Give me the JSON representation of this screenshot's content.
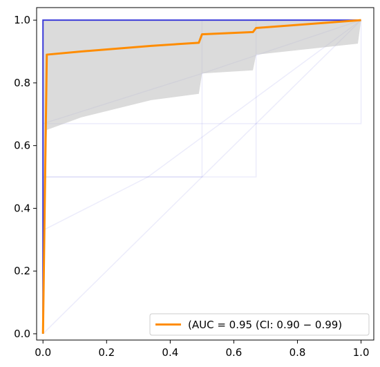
{
  "chart_data": {
    "type": "line",
    "title": "",
    "xlabel": "",
    "ylabel": "",
    "xlim": [
      -0.02,
      1.04
    ],
    "ylim": [
      -0.02,
      1.04
    ],
    "grid": false,
    "legend_placement": "lower-right",
    "x_ticks": [
      0.0,
      0.2,
      0.4,
      0.6,
      0.8,
      1.0
    ],
    "y_ticks": [
      0.0,
      0.2,
      0.4,
      0.6,
      0.8,
      1.0
    ],
    "x_tick_labels": [
      "0.0",
      "0.2",
      "0.4",
      "0.6",
      "0.8",
      "1.0"
    ],
    "y_tick_labels": [
      "0.0",
      "0.2",
      "0.4",
      "0.6",
      "0.8",
      "1.0"
    ],
    "colors": {
      "mean_roc": "#ff8c00",
      "ci_band": "#bebebe",
      "bootstrap": "#6a6ae0",
      "ideal_curve": "#3b3bd9"
    },
    "legend": {
      "label": "(AUC = 0.95 (CI: 0.90 − 0.99)",
      "series": "mean_roc"
    },
    "series": [
      {
        "key": "mean_roc",
        "x": [
          0.0,
          0.012,
          0.12,
          0.34,
          0.49,
          0.5,
          0.66,
          0.67,
          1.0
        ],
        "y": [
          0.0,
          0.89,
          0.9,
          0.918,
          0.928,
          0.955,
          0.962,
          0.975,
          1.0
        ]
      },
      {
        "key": "ideal_curve",
        "x": [
          0.0,
          0.0,
          1.0
        ],
        "y": [
          0.0,
          1.0,
          1.0
        ]
      }
    ],
    "ci_band": {
      "x": [
        0.0,
        0.012,
        0.12,
        0.34,
        0.49,
        0.5,
        0.66,
        0.67,
        0.99,
        1.0
      ],
      "upper": [
        1.0,
        1.0,
        1.0,
        1.0,
        1.0,
        1.0,
        1.0,
        1.0,
        1.0,
        1.0
      ],
      "lower": [
        0.0,
        0.65,
        0.69,
        0.745,
        0.765,
        0.83,
        0.84,
        0.89,
        0.925,
        1.0
      ]
    },
    "bootstrap_curves": [
      {
        "x": [
          0.0,
          0.0,
          0.5,
          0.5,
          1.0
        ],
        "y": [
          0.0,
          0.5,
          0.5,
          1.0,
          1.0
        ]
      },
      {
        "x": [
          0.0,
          0.0,
          0.67,
          0.67,
          1.0
        ],
        "y": [
          0.0,
          0.5,
          0.5,
          1.0,
          1.0
        ]
      },
      {
        "x": [
          0.0,
          0.0,
          1.0,
          1.0
        ],
        "y": [
          0.0,
          0.67,
          0.67,
          1.0
        ]
      },
      {
        "x": [
          0.0,
          0.0,
          0.5,
          1.0
        ],
        "y": [
          0.0,
          0.67,
          0.83,
          1.0
        ]
      },
      {
        "x": [
          0.0,
          0.0,
          0.33,
          1.0
        ],
        "y": [
          0.0,
          0.33,
          0.5,
          1.0
        ]
      },
      {
        "x": [
          0.0,
          1.0
        ],
        "y": [
          0.0,
          1.0
        ]
      }
    ]
  }
}
